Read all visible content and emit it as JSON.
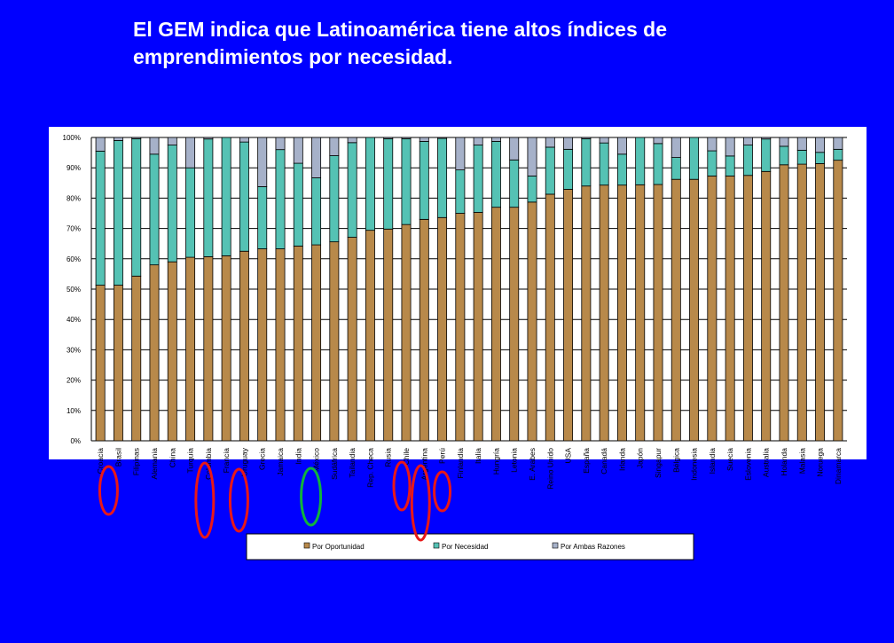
{
  "slide": {
    "title_line1": "El GEM indica que Latinoamérica tiene altos índices de",
    "title_line2": "emprendimientos por necesidad."
  },
  "colors": {
    "background": "#0000ff",
    "plot_bg": "#ffffff",
    "oportunidad": "#b8894a",
    "necesidad": "#55c2b4",
    "ambas": "#a6b1c9",
    "highlight_red": "#e81818",
    "highlight_green": "#10b33c"
  },
  "chart_data": {
    "type": "bar",
    "stacked": true,
    "ylim": [
      0,
      100
    ],
    "y_ticks": [
      "0%",
      "10%",
      "20%",
      "30%",
      "40%",
      "50%",
      "60%",
      "70%",
      "80%",
      "90%",
      "100%"
    ],
    "grid": true,
    "legend_position": "bottom",
    "categories": [
      "Croacia",
      "Brasil",
      "Filipinas",
      "Alemania",
      "China",
      "Turquia",
      "Colombia",
      "Francia",
      "Uruguay",
      "Grecia",
      "Jamaica",
      "India",
      "México",
      "Sudáfrica",
      "Tailandia",
      "Rep. Checa",
      "Rusia",
      "Chile",
      "Argentina",
      "Perú",
      "Finlandia",
      "Italia",
      "Hungría",
      "Letonia",
      "E. Arabes",
      "Reino Unido",
      "USA",
      "España",
      "Canadá",
      "Irlanda",
      "Japón",
      "Singapur",
      "Bélgica",
      "Indonesia",
      "Islandia",
      "Suecia",
      "Eslovenia",
      "Australia",
      "Holanda",
      "Malasia",
      "Noruega",
      "Dinamarca"
    ],
    "series": [
      {
        "name": "Por Oportunidad",
        "values": [
          51.3,
          51.3,
          54.3,
          58.0,
          59.0,
          60.5,
          60.7,
          61.0,
          62.5,
          63.3,
          63.3,
          64.2,
          64.6,
          65.6,
          67.1,
          69.4,
          69.8,
          71.3,
          73.0,
          73.6,
          75.0,
          75.3,
          77.0,
          77.0,
          78.7,
          81.3,
          82.9,
          84.0,
          84.3,
          84.3,
          84.4,
          84.5,
          86.2,
          86.2,
          87.3,
          87.3,
          87.5,
          88.8,
          91.0,
          91.2,
          91.4,
          92.5
        ]
      },
      {
        "name": "Por Necesidad",
        "values": [
          44.2,
          47.7,
          45.3,
          36.5,
          38.5,
          29.5,
          38.8,
          39.0,
          36.0,
          20.5,
          32.7,
          27.3,
          22.1,
          28.4,
          31.2,
          30.6,
          29.8,
          28.3,
          25.7,
          26.1,
          14.3,
          22.2,
          21.7,
          15.6,
          8.6,
          15.5,
          13.2,
          15.6,
          13.9,
          10.2,
          15.6,
          13.5,
          7.2,
          13.8,
          8.3,
          6.6,
          10.0,
          10.7,
          6.1,
          4.6,
          3.7,
          3.6
        ]
      },
      {
        "name": "Por Ambas Razones",
        "values": [
          4.5,
          1.0,
          0.4,
          5.5,
          2.5,
          10.0,
          0.5,
          0.0,
          1.5,
          16.2,
          4.0,
          8.5,
          13.3,
          6.0,
          1.7,
          0.0,
          0.4,
          0.4,
          1.3,
          0.3,
          10.7,
          2.5,
          1.3,
          7.4,
          12.7,
          3.2,
          3.9,
          0.4,
          1.8,
          5.5,
          0.0,
          2.0,
          6.6,
          0.0,
          4.4,
          6.1,
          2.5,
          0.5,
          2.9,
          4.2,
          4.9,
          3.9
        ]
      }
    ],
    "legend": [
      "Por Oportunidad",
      "Por Necesidad",
      "Por Ambas Razones"
    ],
    "highlighted_categories": {
      "red": [
        "Brasil",
        "Colombia",
        "Uruguay",
        "Chile",
        "Argentina",
        "Perú"
      ],
      "green": [
        "México"
      ]
    }
  }
}
